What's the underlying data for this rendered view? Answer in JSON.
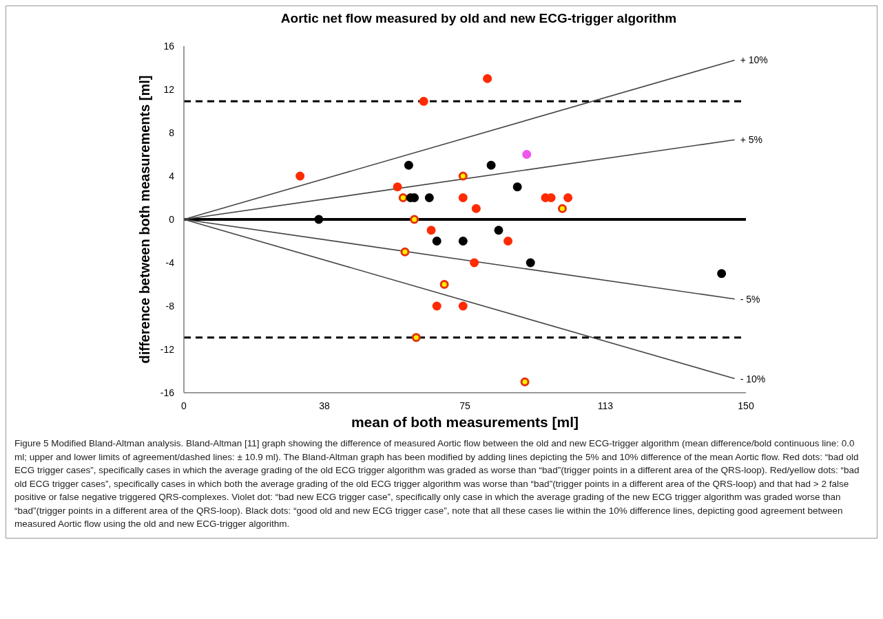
{
  "chart_data": {
    "type": "scatter",
    "title": "Aortic net flow measured by old and new ECG-trigger algorithm",
    "xlabel": "mean of both measurements [ml]",
    "ylabel": "difference between both measurements [ml]",
    "xlim": [
      0,
      150
    ],
    "ylim": [
      -16,
      16
    ],
    "xticks": [
      0,
      {
        "value": 37.5,
        "label": "38"
      },
      75,
      {
        "value": 112.5,
        "label": "113"
      },
      150
    ],
    "yticks": [
      -16,
      -12,
      -8,
      -4,
      0,
      4,
      8,
      12,
      16
    ],
    "grid": false,
    "marker": "circle",
    "series": [
      {
        "color": "#ff2a00",
        "x": [
          31,
          64,
          57,
          74.5,
          81,
          78,
          96.5,
          98,
          102.5,
          66,
          67.5,
          74.5,
          77.5,
          86.5
        ],
        "values": [
          4,
          10.9,
          3,
          2,
          13,
          1,
          2,
          2,
          2,
          -1,
          -8,
          -8,
          -4,
          -2
        ]
      },
      {
        "color": "#ffee00",
        "x": [
          58.5,
          74.5,
          61.5,
          101,
          59,
          69.5,
          62,
          91
        ],
        "values": [
          2,
          4,
          0,
          1,
          -3,
          -6,
          -10.9,
          -15
        ]
      },
      {
        "color": "#ee55ee",
        "x": [
          91.5
        ],
        "values": [
          6
        ]
      },
      {
        "color": "#000000",
        "x": [
          36,
          60,
          60.5,
          61.5,
          65.5,
          82,
          89,
          67.5,
          74.5,
          84,
          92.5,
          143.5
        ],
        "values": [
          0,
          5,
          2,
          2,
          2,
          5,
          3,
          -2,
          -2,
          -1,
          -4,
          -5
        ]
      },
      {
        "type": "line",
        "marker": "none",
        "name": "+ 10%",
        "color": "#444444",
        "x": [
          0,
          147
        ],
        "values": [
          0,
          14.7
        ]
      },
      {
        "type": "line",
        "marker": "none",
        "name": "+ 5%",
        "color": "#444444",
        "x": [
          0,
          147
        ],
        "values": [
          0,
          7.35
        ]
      },
      {
        "type": "line",
        "marker": "none",
        "name": "- 5%",
        "color": "#444444",
        "x": [
          0,
          147
        ],
        "values": [
          0,
          -7.35
        ]
      },
      {
        "type": "line",
        "marker": "none",
        "name": "- 10%",
        "color": "#444444",
        "x": [
          0,
          147
        ],
        "values": [
          0,
          -14.7
        ]
      }
    ],
    "ref_lines": [
      {
        "axis": "y",
        "value": 0,
        "color": "#000000",
        "line_style": "solid"
      },
      {
        "axis": "y",
        "value": 10.9,
        "color": "#000000",
        "line_style": "dashed"
      },
      {
        "axis": "y",
        "value": -10.9,
        "color": "#000000",
        "line_style": "dashed"
      }
    ],
    "annotations": [
      "Figure 5 Modified Bland-Altman analysis. Bland-Altman [11] graph showing the difference of measured Aortic flow between the old and new ECG-trigger algorithm (mean difference/bold continuous line: 0.0 ml; upper and lower limits of agreement/dashed lines: ± 10.9 ml). The Bland-Altman graph has been modified by adding lines depicting the 5% and 10% difference of the mean Aortic flow. Red dots: “bad old ECG trigger cases”, specifically cases in which the average grading of the old ECG trigger algorithm was graded as worse than “bad”(trigger points in a different area of the QRS-loop). Red/yellow dots: “bad old ECG trigger cases”, specifically cases in which both the average grading of the old ECG trigger algorithm was worse than “bad”(trigger points in a different area of the QRS-loop) and that had > 2 false positive or false negative triggered QRS-complexes. Violet dot: “bad new ECG trigger case”, specifically only case in which the average grading of the new ECG trigger algorithm was graded worse than “bad”(trigger points in a different area of the QRS-loop). Black dots: “good old and new ECG trigger case”, note that all these cases lie within the 10% difference lines, depicting good agreement between measured Aortic flow using the old and new ECG-trigger algorithm."
    ]
  }
}
